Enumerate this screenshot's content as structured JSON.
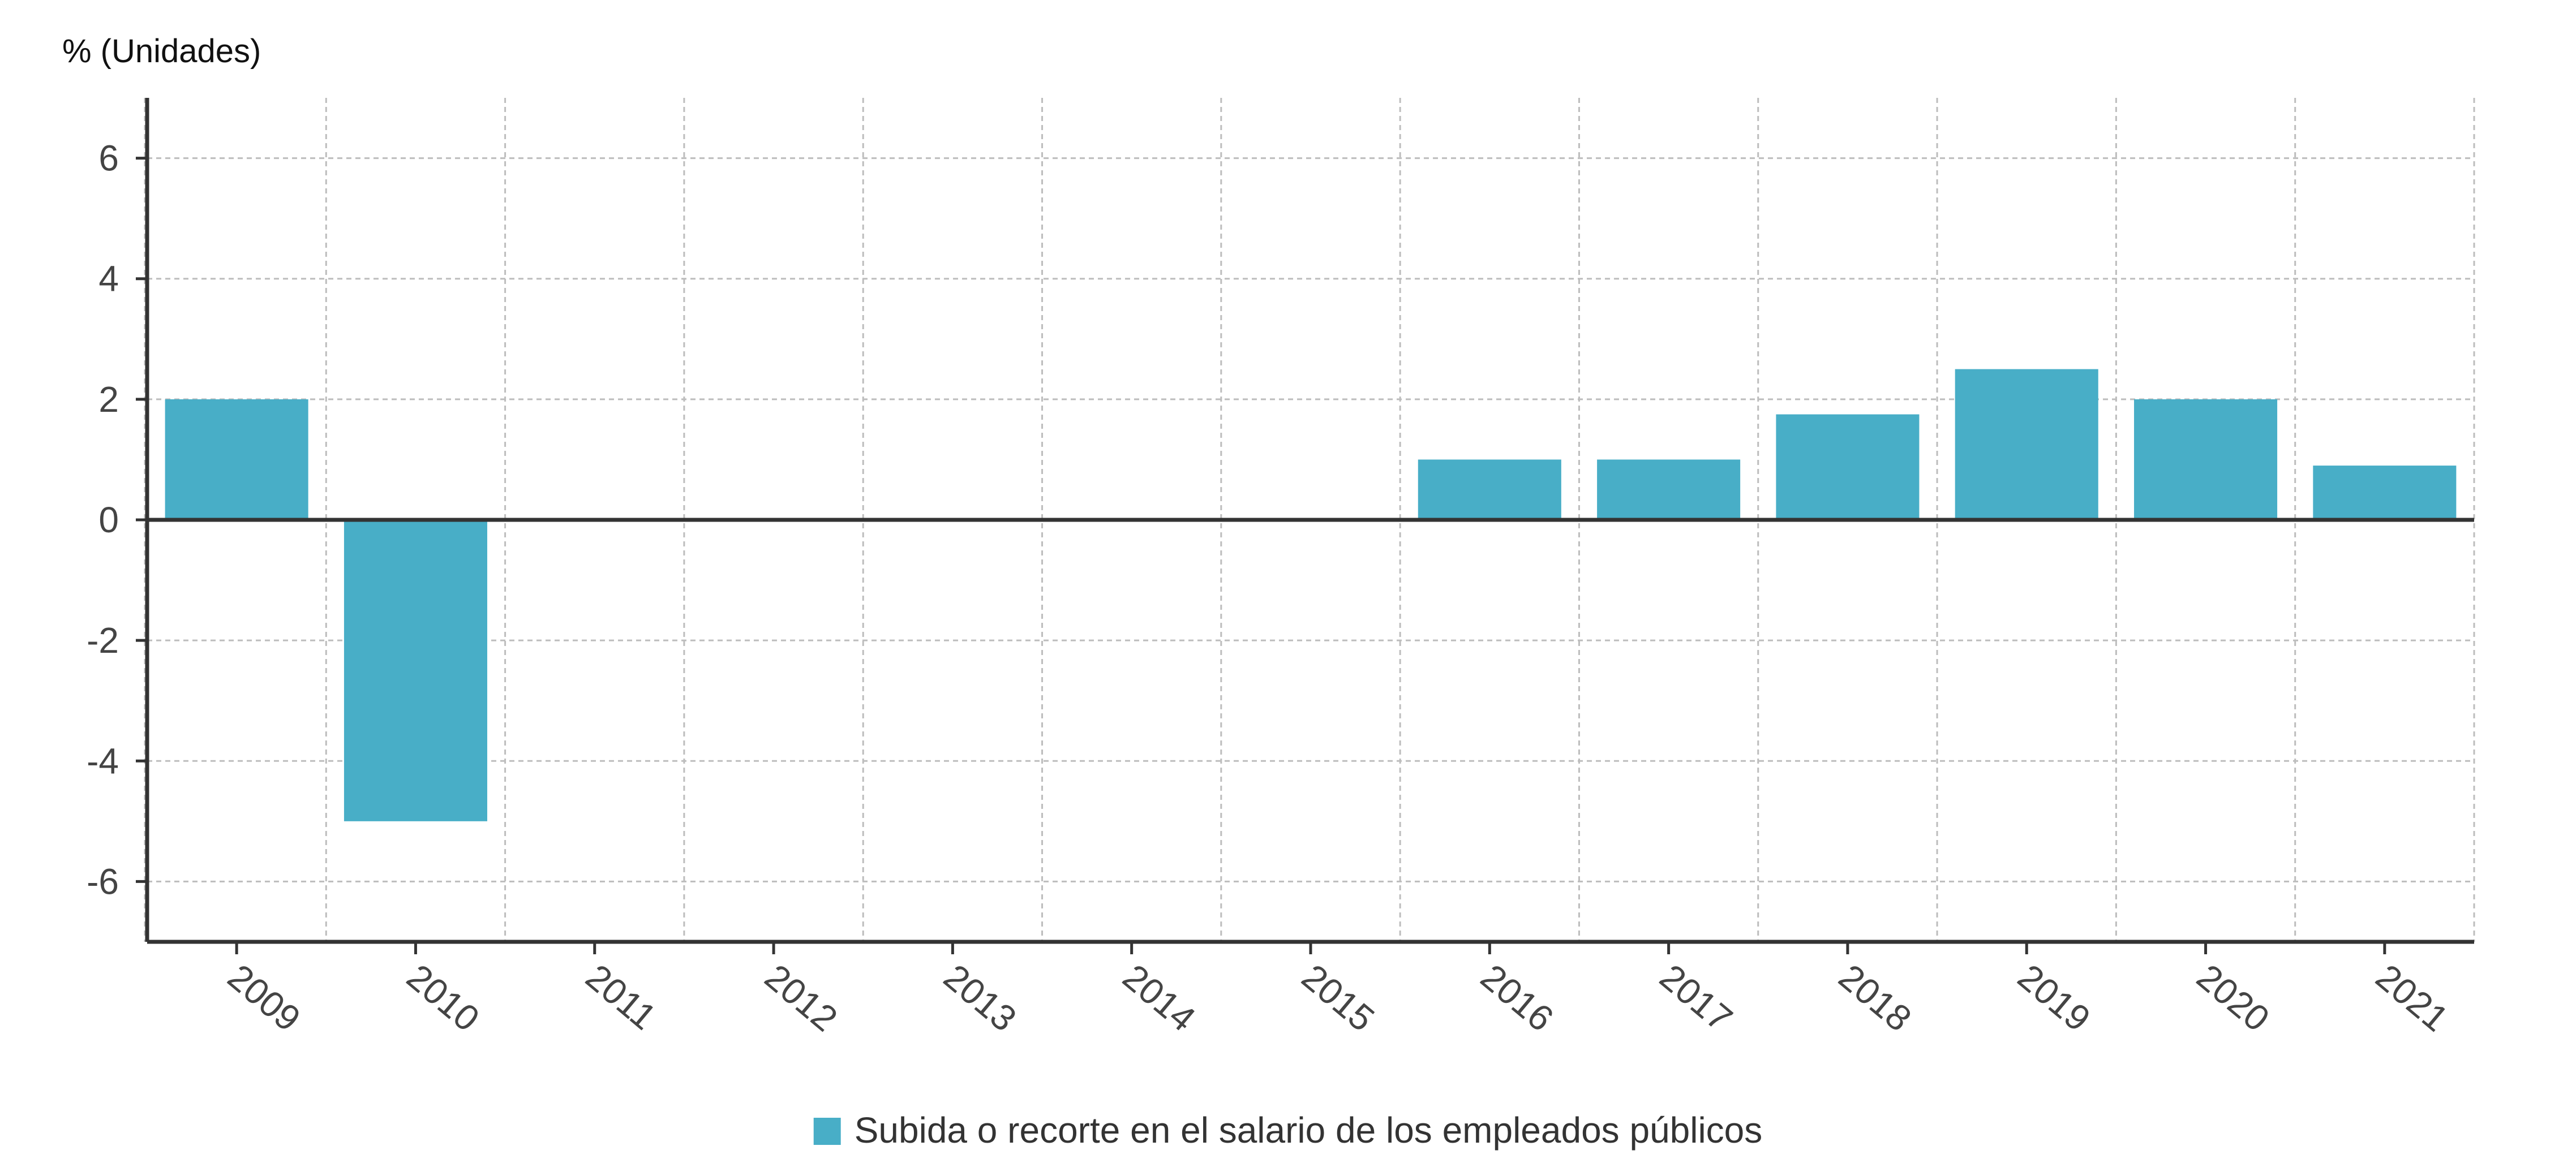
{
  "chart_data": {
    "type": "bar",
    "unit_label": "% (Unidades)",
    "categories": [
      "2009",
      "2010",
      "2011",
      "2012",
      "2013",
      "2014",
      "2015",
      "2016",
      "2017",
      "2018",
      "2019",
      "2020",
      "2021"
    ],
    "series": [
      {
        "name": "Subida o recorte en el salario de los empleados públicos",
        "color": "#48aec7",
        "values": [
          2,
          -5,
          0,
          0,
          0,
          0,
          0,
          1,
          1,
          1.75,
          2.5,
          2,
          0.9
        ]
      }
    ],
    "yticks": [
      6,
      4,
      2,
      0,
      -2,
      -4,
      -6
    ],
    "ylim": [
      -7,
      7
    ],
    "grid": true,
    "legend": "bottom-center"
  }
}
